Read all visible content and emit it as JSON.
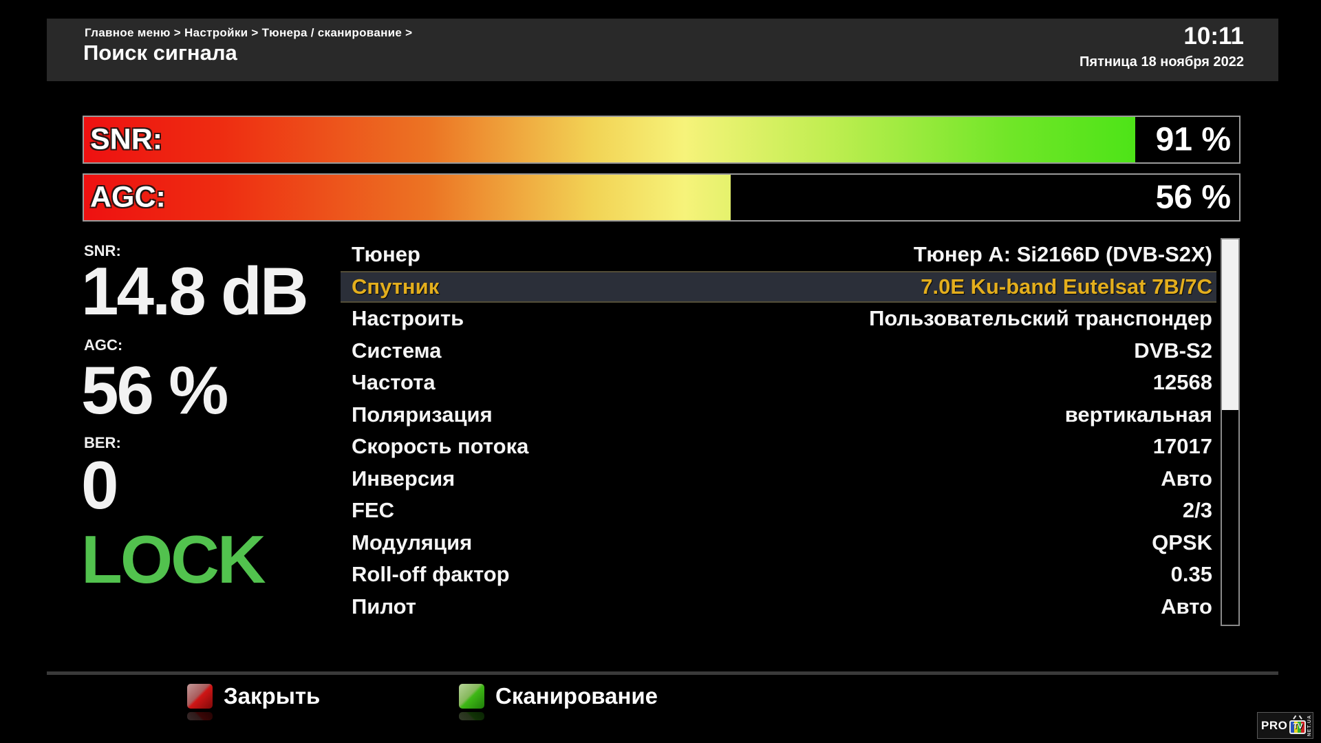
{
  "header": {
    "breadcrumb": "Главное меню > Настройки > Тюнера / сканирование >",
    "title": "Поиск сигнала",
    "time": "10:11",
    "date": "Пятница 18 ноября 2022"
  },
  "signal_bars": [
    {
      "label": "SNR:",
      "percent": 91,
      "display": "91 %"
    },
    {
      "label": "AGC:",
      "percent": 56,
      "display": "56 %"
    }
  ],
  "stats": {
    "snr_label": "SNR:",
    "snr_value": "14.8 dB",
    "agc_label": "AGC:",
    "agc_value": "56 %",
    "ber_label": "BER:",
    "ber_value": "0",
    "lock_status": "LOCK"
  },
  "menu": {
    "rows": [
      {
        "label": "Тюнер",
        "value": "Тюнер A: Si2166D (DVB-S2X)",
        "selected": false
      },
      {
        "label": "Спутник",
        "value": "7.0E Ku-band Eutelsat 7B/7C",
        "selected": true
      },
      {
        "label": "Настроить",
        "value": "Пользовательский транспондер",
        "selected": false
      },
      {
        "label": "Система",
        "value": "DVB-S2",
        "selected": false
      },
      {
        "label": "Частота",
        "value": "12568",
        "selected": false
      },
      {
        "label": "Поляризация",
        "value": "вертикальная",
        "selected": false
      },
      {
        "label": "Скорость потока",
        "value": "17017",
        "selected": false
      },
      {
        "label": "Инверсия",
        "value": "Авто",
        "selected": false
      },
      {
        "label": "FEC",
        "value": "2/3",
        "selected": false
      },
      {
        "label": "Модуляция",
        "value": "QPSK",
        "selected": false
      },
      {
        "label": "Roll-off фактор",
        "value": "0.35",
        "selected": false
      },
      {
        "label": "Пилот",
        "value": "Авто",
        "selected": false
      }
    ]
  },
  "footer": {
    "close_label": "Закрыть",
    "scan_label": "Сканирование"
  },
  "logo": {
    "pro": "PRO",
    "tv": "TV",
    "net": "NET.UA"
  },
  "colors": {
    "lock_green": "#52c24e",
    "selected_yellow": "#e3ae1d",
    "selected_bg": "#2b2f39",
    "header_bg": "#292929",
    "red_key": "#cf1616",
    "green_key": "#3fb816"
  }
}
